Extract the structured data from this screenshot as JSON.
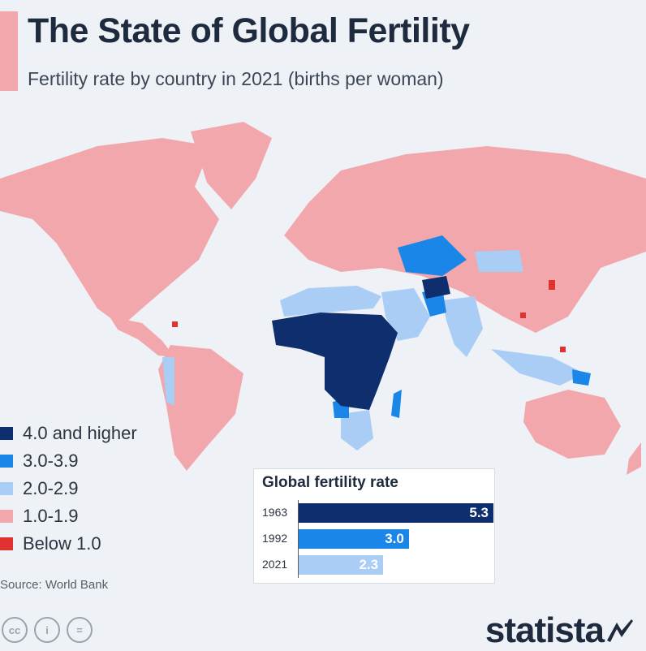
{
  "header": {
    "title": "The State of Global Fertility",
    "subtitle": "Fertility rate by country in 2021 (births per woman)"
  },
  "map": {
    "description_colors": {
      "four_plus": "#0f2e6e",
      "three": "#1a86e8",
      "two": "#a9cdf4",
      "one": "#f2a7ad",
      "below_one": "#e0322e"
    }
  },
  "legend": {
    "items": [
      {
        "label": "4.0 and higher",
        "color": "#0f2e6e"
      },
      {
        "label": "3.0-3.9",
        "color": "#1a86e8"
      },
      {
        "label": "2.0-2.9",
        "color": "#a9cdf4"
      },
      {
        "label": "1.0-1.9",
        "color": "#f2a7ad"
      },
      {
        "label": "Below 1.0",
        "color": "#e0322e"
      }
    ]
  },
  "chart_data": {
    "type": "bar",
    "orientation": "horizontal",
    "title": "Global fertility rate",
    "categories": [
      "1963",
      "1992",
      "2021"
    ],
    "values": [
      5.3,
      3.0,
      2.3
    ],
    "labels": [
      "5.3",
      "3.0",
      "2.3"
    ],
    "colors": [
      "#0f2e6e",
      "#1a86e8",
      "#a9cdf4"
    ],
    "xlim": [
      0,
      5.3
    ]
  },
  "footer": {
    "source": "Source: World Bank",
    "brand": "statista",
    "license_badges": [
      "cc",
      "i",
      "="
    ]
  }
}
